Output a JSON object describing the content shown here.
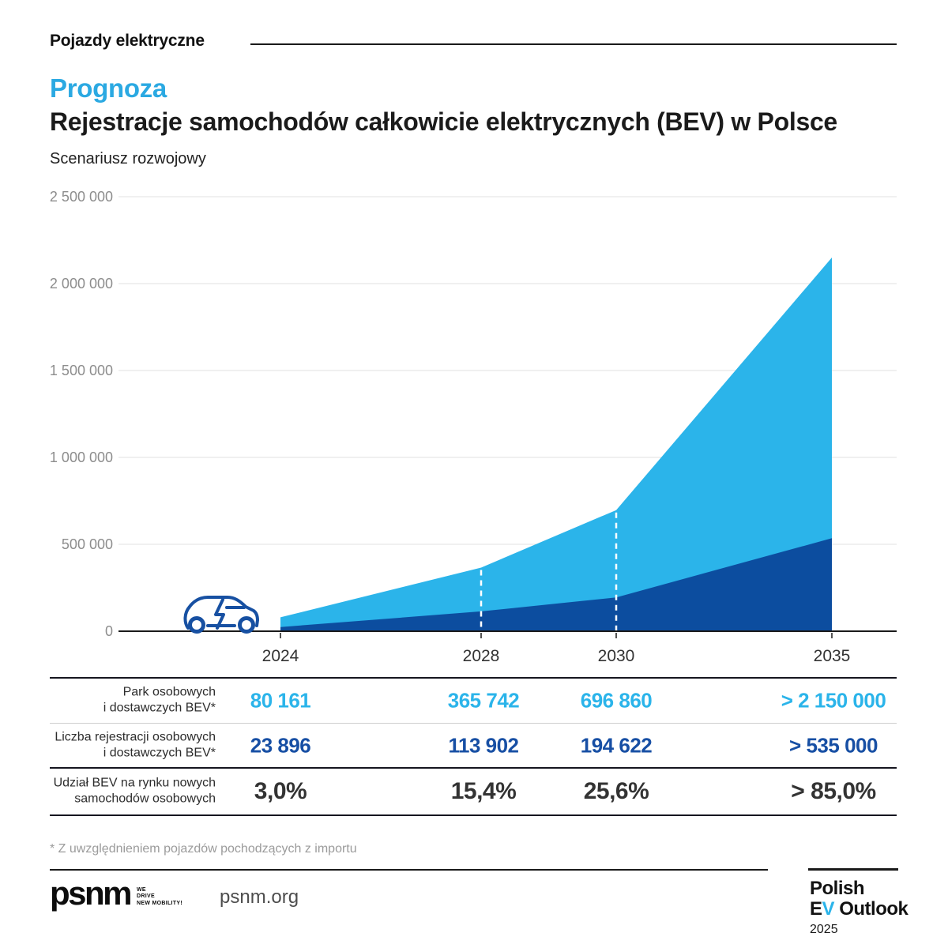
{
  "page": {
    "eyebrow": "Pojazdy elektryczne",
    "title_accent": "Prognoza",
    "title": "Rejestracje samochodów całkowicie elektrycznych (BEV) w Polsce",
    "subtitle": "Scenariusz rozwojowy",
    "footnote": "* Z uwzględnieniem pojazdów pochodzących z importu"
  },
  "colors": {
    "accent_light_blue": "#2BB4EA",
    "area_dark_blue": "#0C4D9F",
    "navy_value_text": "#174FA4",
    "grid_gray": "#e2e2e2",
    "axis_black": "#1a1a1a"
  },
  "chart_data": {
    "type": "area",
    "title": "Prognoza — Rejestracje samochodów całkowicie elektrycznych (BEV) w Polsce",
    "subtitle": "Scenariusz rozwojowy",
    "x": [
      2024,
      2028,
      2030,
      2035
    ],
    "x_labels": [
      "2024",
      "2028",
      "2030",
      "2035"
    ],
    "series": [
      {
        "name": "Park osobowych i dostawczych BEV*",
        "values": [
          80161,
          365742,
          696860,
          2150000
        ],
        "color": "#2BB4EA",
        "last_value_display": "> 2 150 000"
      },
      {
        "name": "Liczba rejestracji osobowych i dostawczych BEV*",
        "values": [
          23896,
          113902,
          194622,
          535000
        ],
        "color": "#0C4D9F",
        "last_value_display": "> 535 000"
      }
    ],
    "ylim": [
      0,
      2500000
    ],
    "y_ticks": [
      "2 500 000",
      "2 000 000",
      "1 500 000",
      "1 000 000",
      "500 000",
      "0"
    ],
    "y_tick_values": [
      2500000,
      2000000,
      1500000,
      1000000,
      500000,
      0
    ],
    "grid": true,
    "dashed_guides_at": [
      2028,
      2030
    ],
    "legend_position": "none"
  },
  "table": {
    "rows": [
      {
        "label": "Park osobowych\ni dostawczych BEV*",
        "values": [
          "80 161",
          "365 742",
          "696 860",
          "> 2 150 000"
        ]
      },
      {
        "label": "Liczba rejestracji osobowych\ni dostawczych BEV*",
        "values": [
          "23 896",
          "113 902",
          "194 622",
          "> 535 000"
        ]
      },
      {
        "label": "Udział BEV na rynku nowych\nsamochodów osobowych",
        "values": [
          "3,0%",
          "15,4%",
          "25,6%",
          "> 85,0%"
        ]
      }
    ]
  },
  "footer": {
    "logo_text": "psnm",
    "logo_tagline_lines": [
      "WE",
      "DRIVE",
      "NEW MOBILITY!"
    ],
    "website": "psnm.org",
    "outlook_line1": "Polish",
    "outlook_e": "E",
    "outlook_v": "V",
    "outlook_rest": " Outlook",
    "outlook_year": "2025"
  }
}
